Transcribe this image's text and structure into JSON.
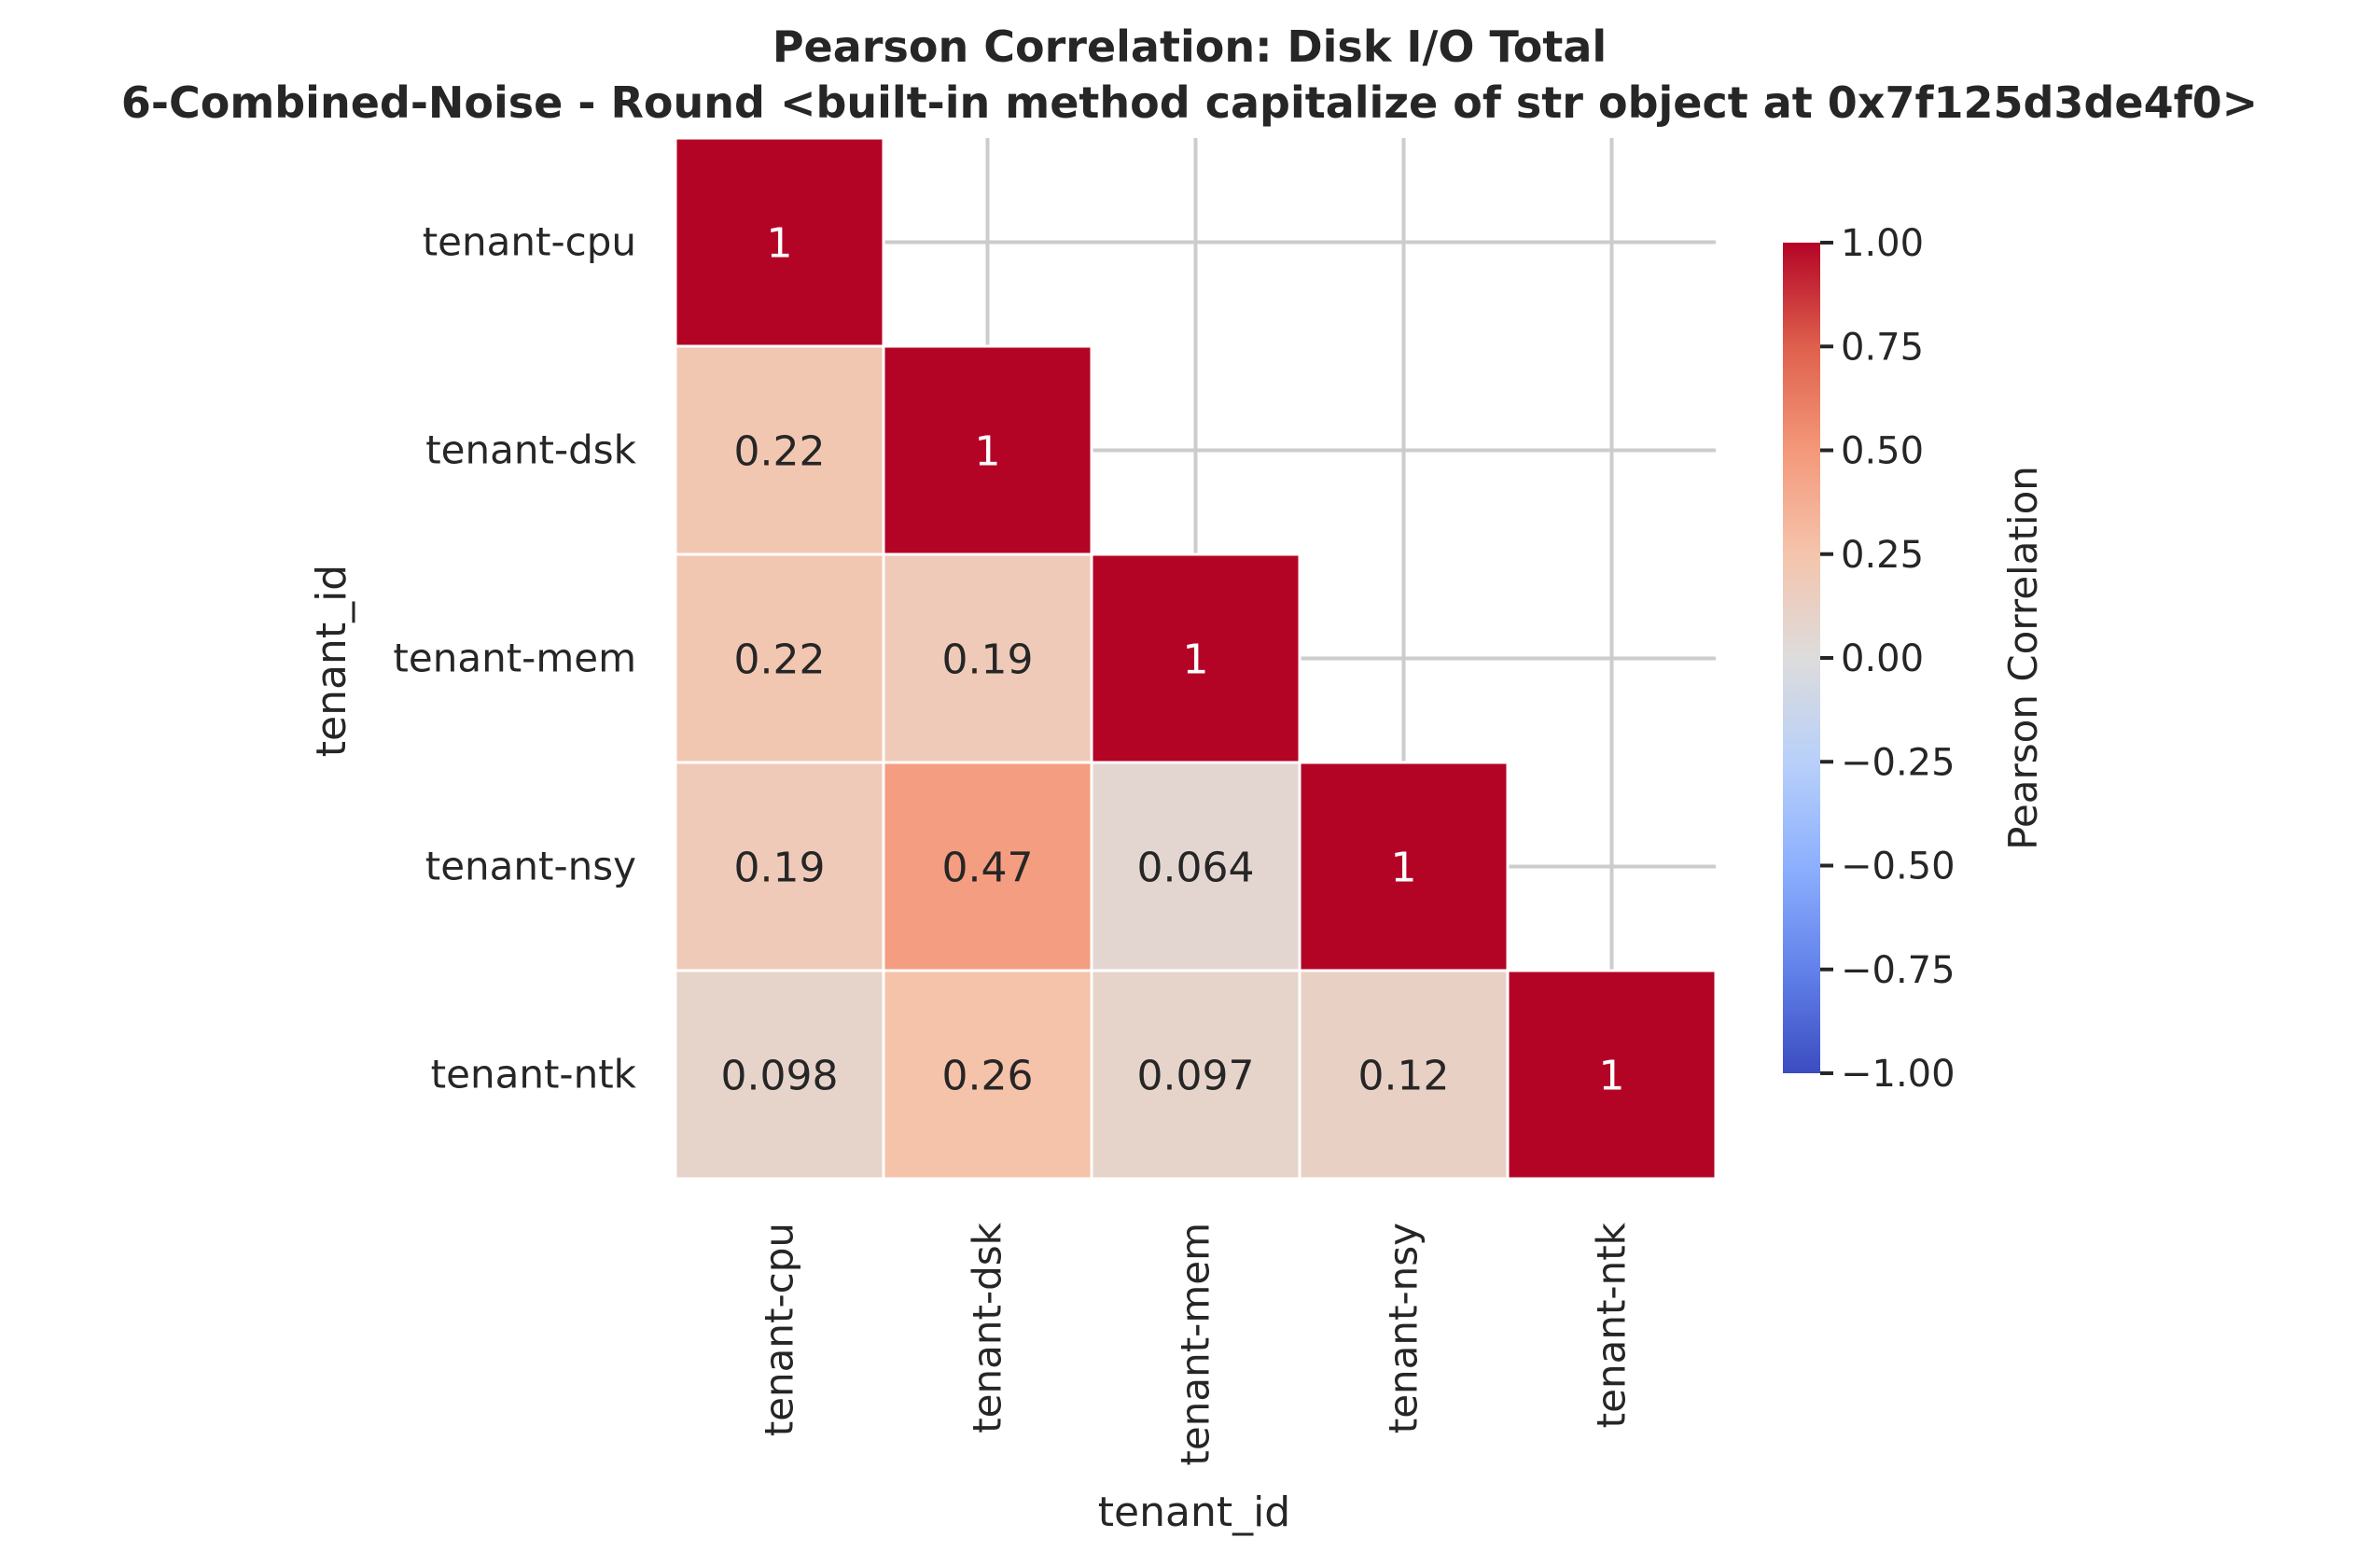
{
  "chart_data": {
    "type": "heatmap",
    "title": "Pearson Correlation: Disk I/O Total",
    "subtitle": "6-Combined-Noise - Round <built-in method capitalize of str object at 0x7f125d3de4f0>",
    "xlabel": "tenant_id",
    "ylabel": "tenant_id",
    "categories": [
      "tenant-cpu",
      "tenant-dsk",
      "tenant-mem",
      "tenant-nsy",
      "tenant-ntk"
    ],
    "values": [
      [
        1,
        null,
        null,
        null,
        null
      ],
      [
        0.22,
        1,
        null,
        null,
        null
      ],
      [
        0.22,
        0.19,
        1,
        null,
        null
      ],
      [
        0.19,
        0.47,
        0.064,
        1,
        null
      ],
      [
        0.098,
        0.26,
        0.097,
        0.12,
        1
      ]
    ],
    "value_labels": [
      [
        "1",
        "",
        "",
        "",
        ""
      ],
      [
        "0.22",
        "1",
        "",
        "",
        ""
      ],
      [
        "0.22",
        "0.19",
        "1",
        "",
        ""
      ],
      [
        "0.19",
        "0.47",
        "0.064",
        "1",
        ""
      ],
      [
        "0.098",
        "0.26",
        "0.097",
        "0.12",
        "1"
      ]
    ],
    "mask": "upper-triangle",
    "grid": true,
    "colormap": "coolwarm",
    "vmin": -1.0,
    "vmax": 1.0,
    "colorbar": {
      "label": "Pearson Correlation",
      "ticks": [
        1.0,
        0.75,
        0.5,
        0.25,
        0.0,
        -0.25,
        -0.5,
        -0.75,
        -1.0
      ],
      "tick_labels": [
        "1.00",
        "0.75",
        "0.50",
        "0.25",
        "0.00",
        "−0.25",
        "−0.50",
        "−0.75",
        "−1.00"
      ],
      "placement": "right"
    },
    "colors": {
      "max": "#b40426",
      "mid": "#dddcdc",
      "min": "#3b4cc0",
      "text_dark": "#262626",
      "text_light": "#ffffff",
      "grid": "#cccccc"
    }
  }
}
